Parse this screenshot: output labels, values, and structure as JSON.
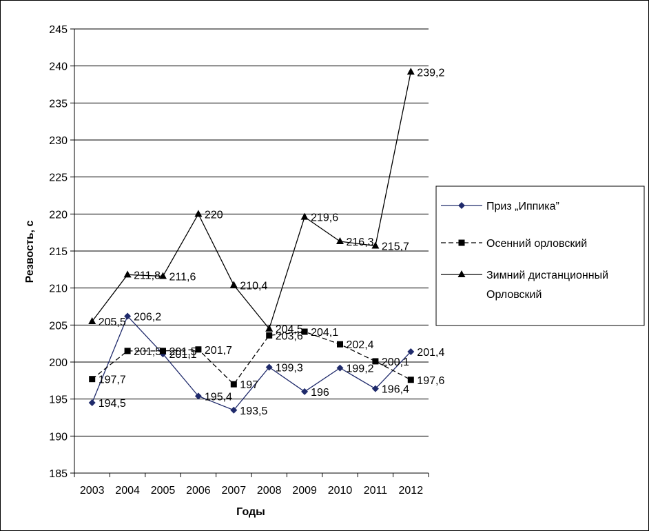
{
  "chart_data": {
    "type": "line",
    "title": "",
    "xlabel": "Годы",
    "ylabel": "Резвость, с",
    "ylim": [
      185,
      245
    ],
    "ytick_step": 5,
    "grid": "horizontal",
    "legend_position": "right",
    "categories": [
      "2003",
      "2004",
      "2005",
      "2006",
      "2007",
      "2008",
      "2009",
      "2010",
      "2011",
      "2012"
    ],
    "series": [
      {
        "name": "Приз „Иппика”",
        "values": [
          194.5,
          206.2,
          201.1,
          195.4,
          193.5,
          199.3,
          196,
          199.2,
          196.4,
          201.4
        ],
        "labels": [
          "194,5",
          "206,2",
          "201,1",
          "195,4",
          "193,5",
          "199,3",
          "196",
          "199,2",
          "196,4",
          "201,4"
        ],
        "color": "#1f2a6b",
        "marker": "diamond",
        "dash": "solid"
      },
      {
        "name": "Осенний орловский",
        "values": [
          197.7,
          201.5,
          201.5,
          201.7,
          197,
          203.6,
          204.1,
          202.4,
          200.1,
          197.6
        ],
        "labels": [
          "197,7",
          "201,5",
          "201,5",
          "201,7",
          "197",
          "203,6",
          "204,1",
          "202,4",
          "200,1",
          "197,6"
        ],
        "color": "#000000",
        "marker": "square",
        "dash": "dashed"
      },
      {
        "name": "Зимний дистанционный Орловский",
        "name_lines": [
          "Зимний дистанционный",
          "Орловский"
        ],
        "values": [
          205.5,
          211.8,
          211.6,
          220,
          210.4,
          204.5,
          219.6,
          216.3,
          215.7,
          239.2
        ],
        "labels": [
          "205,5",
          "211,8",
          "211,6",
          "220",
          "210,4",
          "204,5",
          "219,6",
          "216,3",
          "215,7",
          "239,2"
        ],
        "color": "#000000",
        "marker": "triangle",
        "dash": "solid"
      }
    ]
  }
}
